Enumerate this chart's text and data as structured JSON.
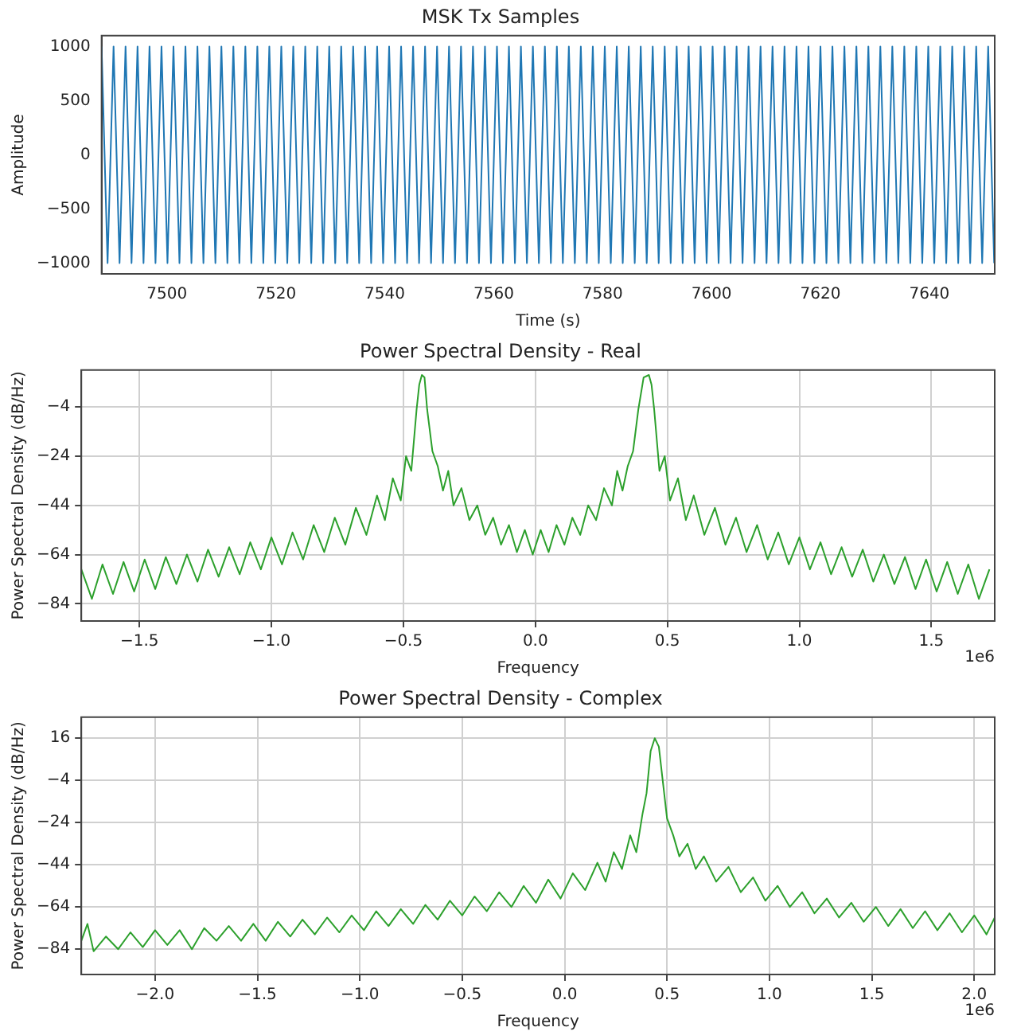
{
  "chart_data": [
    {
      "type": "line",
      "title": "MSK Tx Samples",
      "xlabel": "Time (s)",
      "ylabel": "Amplitude",
      "color": "#1f77b4",
      "marker": "none",
      "grid": false,
      "xlim": [
        7488,
        7652
      ],
      "ylim": [
        -1100,
        1100
      ],
      "xticks": [
        7500,
        7520,
        7540,
        7560,
        7580,
        7600,
        7620,
        7640
      ],
      "yticks": [
        {
          "value": -1000,
          "label": "−1000"
        },
        {
          "value": -500,
          "label": "−500"
        },
        0,
        500,
        1000
      ],
      "x": [
        7488.0,
        7489.1,
        7490.2,
        7491.3,
        7492.4,
        7493.5,
        7494.6,
        7495.7,
        7496.8,
        7497.9,
        7499.0,
        7500.1,
        7501.2,
        7502.3,
        7503.4,
        7504.5,
        7505.6,
        7506.7,
        7507.8,
        7508.9,
        7510.0,
        7511.1,
        7512.2,
        7513.3,
        7514.4,
        7515.5,
        7516.6,
        7517.7,
        7518.8,
        7519.9,
        7521.0,
        7522.1,
        7523.2,
        7524.3,
        7525.4,
        7526.5,
        7527.6,
        7528.7,
        7529.8,
        7530.9,
        7532.0,
        7533.1,
        7534.2,
        7535.3,
        7536.4,
        7537.5,
        7538.6,
        7539.7,
        7540.8,
        7541.9,
        7543.0,
        7544.1,
        7545.2,
        7546.3,
        7547.4,
        7548.5,
        7549.6,
        7550.7,
        7551.8,
        7552.9,
        7554.0,
        7555.1,
        7556.2,
        7557.3,
        7558.4,
        7559.5,
        7560.6,
        7561.7,
        7562.8,
        7563.9,
        7565.0,
        7566.1,
        7567.2,
        7568.3,
        7569.4,
        7570.5,
        7571.6,
        7572.7,
        7573.8,
        7574.9,
        7576.0,
        7577.1,
        7578.2,
        7579.3,
        7580.4,
        7581.5,
        7582.6,
        7583.7,
        7584.8,
        7585.9,
        7587.0,
        7588.1,
        7589.2,
        7590.3,
        7591.4,
        7592.5,
        7593.6,
        7594.7,
        7595.8,
        7596.9,
        7598.0,
        7599.1,
        7600.2,
        7601.3,
        7602.4,
        7603.5,
        7604.6,
        7605.7,
        7606.8,
        7607.9,
        7609.0,
        7610.1,
        7611.2,
        7612.3,
        7613.4,
        7614.5,
        7615.6,
        7616.7,
        7617.8,
        7618.9,
        7620.0,
        7621.1,
        7622.2,
        7623.3,
        7624.4,
        7625.5,
        7626.6,
        7627.7,
        7628.8,
        7629.9,
        7631.0,
        7632.1,
        7633.2,
        7634.3,
        7635.4,
        7636.5,
        7637.6,
        7638.7,
        7639.8,
        7640.9,
        7642.0,
        7643.1,
        7644.2,
        7645.3,
        7646.4,
        7647.5,
        7648.6,
        7649.7,
        7650.8,
        7651.9
      ],
      "values": [
        1000,
        -1000,
        1000,
        -1000,
        1000,
        -1000,
        1000,
        -1000,
        1000,
        -1000,
        1000,
        -1000,
        1000,
        -1000,
        1000,
        -1000,
        1000,
        -1000,
        1000,
        -1000,
        1000,
        -1000,
        1000,
        -1000,
        1000,
        -1000,
        1000,
        -1000,
        1000,
        -1000,
        1000,
        -1000,
        1000,
        -1000,
        1000,
        -1000,
        1000,
        -1000,
        1000,
        -1000,
        1000,
        -1000,
        1000,
        -1000,
        1000,
        -1000,
        1000,
        -1000,
        1000,
        -1000,
        1000,
        -1000,
        1000,
        -1000,
        1000,
        -1000,
        1000,
        -1000,
        1000,
        -1000,
        1000,
        -1000,
        1000,
        -1000,
        1000,
        -1000,
        1000,
        -1000,
        1000,
        -1000,
        1000,
        -1000,
        1000,
        -1000,
        1000,
        -1000,
        1000,
        -1000,
        1000,
        -1000,
        1000,
        -1000,
        1000,
        -1000,
        1000,
        -1000,
        1000,
        -1000,
        1000,
        -1000,
        1000,
        -1000,
        1000,
        -1000,
        1000,
        -1000,
        1000,
        -1000,
        1000,
        -1000,
        1000,
        -1000,
        1000,
        -1000,
        1000,
        -1000,
        1000,
        -1000,
        1000,
        -1000,
        1000,
        -1000,
        1000,
        -1000,
        1000,
        -1000,
        1000,
        -1000,
        1000,
        -1000,
        1000,
        -1000,
        1000,
        -1000,
        1000,
        -1000,
        1000,
        -1000,
        1000,
        -1000,
        1000,
        -1000,
        1000,
        -1000,
        1000,
        -1000,
        1000,
        -1000,
        1000,
        -1000,
        1000,
        -1000,
        1000,
        -1000,
        1000,
        -1000,
        1000,
        -1000,
        1000,
        -1000
      ]
    },
    {
      "type": "line",
      "title": "Power Spectral Density - Real",
      "xlabel": "Frequency",
      "ylabel": "Power Spectral Density (dB/Hz)",
      "color": "#2ca02c",
      "marker": "none",
      "grid": true,
      "annotations": [
        "1e6"
      ],
      "xlim": [
        -1.72,
        1.74
      ],
      "ylim": [
        -91,
        11
      ],
      "xticks": [
        {
          "value": -1.5,
          "label": "−1.5"
        },
        {
          "value": -1,
          "label": "−1.0"
        },
        {
          "value": -0.5,
          "label": "−0.5"
        },
        {
          "value": 0,
          "label": "0.0"
        },
        {
          "value": 0.5,
          "label": "0.5"
        },
        {
          "value": 1,
          "label": "1.0"
        },
        {
          "value": 1.5,
          "label": "1.5"
        }
      ],
      "yticks": [
        {
          "value": -84,
          "label": "−84"
        },
        {
          "value": -64,
          "label": "−64"
        },
        {
          "value": -44,
          "label": "−44"
        },
        {
          "value": -24,
          "label": "−24"
        },
        {
          "value": -4,
          "label": "−4"
        }
      ],
      "x": [
        -1.72,
        -1.68,
        -1.64,
        -1.6,
        -1.56,
        -1.52,
        -1.48,
        -1.44,
        -1.4,
        -1.36,
        -1.32,
        -1.28,
        -1.24,
        -1.2,
        -1.16,
        -1.12,
        -1.08,
        -1.04,
        -1,
        -0.96,
        -0.92,
        -0.88,
        -0.84,
        -0.8,
        -0.76,
        -0.72,
        -0.68,
        -0.64,
        -0.6,
        -0.57,
        -0.54,
        -0.51,
        -0.49,
        -0.47,
        -0.45,
        -0.44,
        -0.43,
        -0.42,
        -0.41,
        -0.39,
        -0.37,
        -0.35,
        -0.33,
        -0.31,
        -0.28,
        -0.25,
        -0.22,
        -0.19,
        -0.16,
        -0.13,
        -0.1,
        -0.07,
        -0.04,
        -0.01,
        0.02,
        0.05,
        0.08,
        0.11,
        0.14,
        0.17,
        0.2,
        0.23,
        0.26,
        0.29,
        0.31,
        0.33,
        0.35,
        0.37,
        0.39,
        0.41,
        0.43,
        0.44,
        0.45,
        0.47,
        0.49,
        0.51,
        0.54,
        0.57,
        0.6,
        0.64,
        0.68,
        0.72,
        0.76,
        0.8,
        0.84,
        0.88,
        0.92,
        0.96,
        1,
        1.04,
        1.08,
        1.12,
        1.16,
        1.2,
        1.24,
        1.28,
        1.32,
        1.36,
        1.4,
        1.44,
        1.48,
        1.52,
        1.56,
        1.6,
        1.64,
        1.68,
        1.72
      ],
      "values": [
        -70,
        -82,
        -68,
        -80,
        -67,
        -79,
        -66,
        -78,
        -65,
        -76,
        -64,
        -75,
        -62,
        -73,
        -61,
        -72,
        -59,
        -70,
        -57,
        -68,
        -55,
        -66,
        -52,
        -63,
        -49,
        -60,
        -45,
        -56,
        -40,
        -50,
        -33,
        -42,
        -24,
        -30,
        -5,
        5,
        9,
        8,
        -5,
        -22,
        -28,
        -38,
        -30,
        -44,
        -37,
        -50,
        -44,
        -56,
        -49,
        -60,
        -52,
        -63,
        -54,
        -64,
        -54,
        -63,
        -52,
        -60,
        -49,
        -56,
        -44,
        -50,
        -37,
        -44,
        -30,
        -38,
        -28,
        -22,
        -5,
        8,
        9,
        5,
        -5,
        -30,
        -24,
        -42,
        -33,
        -50,
        -40,
        -56,
        -45,
        -60,
        -49,
        -63,
        -52,
        -66,
        -55,
        -68,
        -57,
        -70,
        -59,
        -72,
        -61,
        -73,
        -62,
        -75,
        -64,
        -76,
        -65,
        -78,
        -66,
        -79,
        -67,
        -80,
        -68,
        -82,
        -70
      ]
    },
    {
      "type": "line",
      "title": "Power Spectral Density - Complex",
      "xlabel": "Frequency",
      "ylabel": "Power Spectral Density (dB/Hz)",
      "color": "#2ca02c",
      "marker": "none",
      "grid": true,
      "annotations": [
        "1e6"
      ],
      "xlim": [
        -2.36,
        2.1
      ],
      "ylim": [
        -96,
        26
      ],
      "xticks": [
        {
          "value": -2,
          "label": "−2.0"
        },
        {
          "value": -1.5,
          "label": "−1.5"
        },
        {
          "value": -1,
          "label": "−1.0"
        },
        {
          "value": -0.5,
          "label": "−0.5"
        },
        {
          "value": 0,
          "label": "0.0"
        },
        {
          "value": 0.5,
          "label": "0.5"
        },
        {
          "value": 1,
          "label": "1.0"
        },
        {
          "value": 1.5,
          "label": "1.5"
        },
        {
          "value": 2,
          "label": "2.0"
        }
      ],
      "yticks": [
        {
          "value": -84,
          "label": "−84"
        },
        {
          "value": -64,
          "label": "−64"
        },
        {
          "value": -44,
          "label": "−44"
        },
        {
          "value": -24,
          "label": "−24"
        },
        {
          "value": -4,
          "label": "−4"
        },
        16
      ],
      "x": [
        -2.36,
        -2.33,
        -2.3,
        -2.24,
        -2.18,
        -2.12,
        -2.06,
        -2,
        -1.94,
        -1.88,
        -1.82,
        -1.76,
        -1.7,
        -1.64,
        -1.58,
        -1.52,
        -1.46,
        -1.4,
        -1.34,
        -1.28,
        -1.22,
        -1.16,
        -1.1,
        -1.04,
        -0.98,
        -0.92,
        -0.86,
        -0.8,
        -0.74,
        -0.68,
        -0.62,
        -0.56,
        -0.5,
        -0.44,
        -0.38,
        -0.32,
        -0.26,
        -0.2,
        -0.14,
        -0.08,
        -0.02,
        0.04,
        0.1,
        0.16,
        0.2,
        0.24,
        0.28,
        0.32,
        0.35,
        0.38,
        0.4,
        0.42,
        0.44,
        0.46,
        0.48,
        0.5,
        0.53,
        0.56,
        0.6,
        0.64,
        0.68,
        0.74,
        0.8,
        0.86,
        0.92,
        0.98,
        1.04,
        1.1,
        1.16,
        1.22,
        1.28,
        1.34,
        1.4,
        1.46,
        1.52,
        1.58,
        1.64,
        1.7,
        1.76,
        1.82,
        1.88,
        1.94,
        2,
        2.06,
        2.1
      ],
      "values": [
        -80,
        -72,
        -85,
        -78,
        -84,
        -76,
        -83,
        -75,
        -82,
        -75,
        -84,
        -74,
        -80,
        -73,
        -80,
        -72,
        -80,
        -71,
        -78,
        -70,
        -77,
        -69,
        -76,
        -68,
        -75,
        -66,
        -73,
        -65,
        -72,
        -63,
        -70,
        -61,
        -68,
        -59,
        -66,
        -57,
        -64,
        -54,
        -62,
        -51,
        -60,
        -48,
        -56,
        -43,
        -52,
        -38,
        -46,
        -30,
        -38,
        -20,
        -10,
        10,
        16,
        12,
        -5,
        -22,
        -30,
        -40,
        -34,
        -46,
        -40,
        -52,
        -45,
        -57,
        -50,
        -61,
        -54,
        -64,
        -57,
        -67,
        -60,
        -69,
        -62,
        -71,
        -64,
        -73,
        -65,
        -74,
        -66,
        -75,
        -67,
        -76,
        -68,
        -77,
        -69
      ]
    }
  ]
}
